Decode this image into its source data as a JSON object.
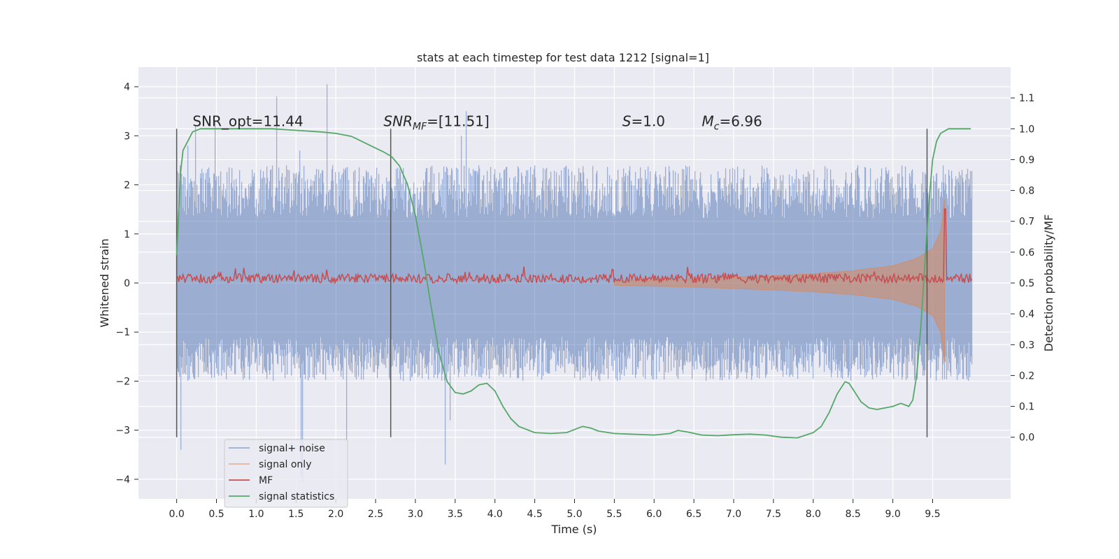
{
  "chart_data": {
    "type": "line",
    "title": "stats at each timestep for test data 1212 [signal=1]",
    "xlabel": "Time (s)",
    "ylabel_left": "Whitened strain",
    "ylabel_right": "Detection probability/MF",
    "xlim": [
      -0.48,
      10.48
    ],
    "ylim_left": [
      -4.4,
      4.4
    ],
    "ylim_right": [
      -0.2,
      1.2
    ],
    "xticks": [
      "0.0",
      "0.5",
      "1.0",
      "1.5",
      "2.0",
      "2.5",
      "3.0",
      "3.5",
      "4.0",
      "4.5",
      "5.0",
      "5.5",
      "6.0",
      "6.5",
      "7.0",
      "7.5",
      "8.0",
      "8.5",
      "9.0",
      "9.5"
    ],
    "yticks_left": [
      "4",
      "3",
      "2",
      "1",
      "0",
      "−1",
      "−2",
      "−3",
      "−4"
    ],
    "yticks_right": [
      "1.1",
      "1.0",
      "0.9",
      "0.8",
      "0.7",
      "0.6",
      "0.5",
      "0.4",
      "0.3",
      "0.2",
      "0.1",
      "0.0"
    ],
    "grid": true,
    "legend_position": "lower-left",
    "annotations": [
      {
        "text": "SNR_opt=11.44",
        "x": 0.2,
        "y": 3.2
      },
      {
        "text": "SNR",
        "sub": "MF",
        "rest": "=[11.51]",
        "x": 2.6,
        "y": 3.2
      },
      {
        "text": "S",
        "rest": "=1.0",
        "x": 5.6,
        "y": 3.2
      },
      {
        "text": "M",
        "sub": "c",
        "rest": "=6.96",
        "x": 6.6,
        "y": 3.2
      }
    ],
    "vlines": [
      0.0,
      2.69,
      9.43
    ],
    "series": [
      {
        "name": "signal+ noise",
        "color": "#4c72b0",
        "axis": "left",
        "x_range": [
          0.0,
          10.0
        ],
        "band": [
          -2.0,
          2.4
        ],
        "spikes_max": [
          2.7,
          2.8,
          3.0,
          3.2,
          3.3,
          3.5,
          3.8,
          4.05
        ],
        "spikes_min": [
          -2.8,
          -3.2,
          -3.4,
          -3.7,
          -3.95,
          -4.05
        ]
      },
      {
        "name": "signal only",
        "color": "#dd8452",
        "axis": "left",
        "x_range": [
          0.0,
          9.65
        ],
        "envelope": [
          [
            5.5,
            0.05
          ],
          [
            6.0,
            0.07
          ],
          [
            6.5,
            0.09
          ],
          [
            7.0,
            0.12
          ],
          [
            7.5,
            0.15
          ],
          [
            8.0,
            0.19
          ],
          [
            8.5,
            0.25
          ],
          [
            9.0,
            0.35
          ],
          [
            9.3,
            0.5
          ],
          [
            9.5,
            0.7
          ],
          [
            9.6,
            1.05
          ],
          [
            9.65,
            1.7
          ]
        ]
      },
      {
        "name": "MF",
        "color": "#c44e52",
        "axis": "right",
        "x_range": [
          0.0,
          10.0
        ],
        "level": [
          0.5,
          0.53
        ],
        "peak": {
          "x": 9.66,
          "y": 0.74
        }
      },
      {
        "name": "signal statistics",
        "color": "#55a868",
        "axis": "right",
        "x": [
          0.0,
          0.02,
          0.05,
          0.08,
          0.12,
          0.2,
          0.3,
          0.4,
          0.6,
          0.8,
          1.0,
          1.2,
          1.5,
          1.8,
          2.0,
          2.2,
          2.4,
          2.6,
          2.7,
          2.8,
          2.9,
          3.0,
          3.1,
          3.2,
          3.3,
          3.4,
          3.5,
          3.6,
          3.7,
          3.8,
          3.9,
          4.0,
          4.1,
          4.2,
          4.3,
          4.5,
          4.7,
          4.9,
          5.0,
          5.1,
          5.2,
          5.3,
          5.5,
          5.7,
          6.0,
          6.2,
          6.3,
          6.4,
          6.6,
          6.8,
          7.0,
          7.2,
          7.4,
          7.6,
          7.8,
          8.0,
          8.1,
          8.2,
          8.3,
          8.4,
          8.45,
          8.5,
          8.6,
          8.7,
          8.8,
          9.0,
          9.1,
          9.15,
          9.2,
          9.25,
          9.3,
          9.35,
          9.4,
          9.45,
          9.5,
          9.55,
          9.6,
          9.7,
          9.8,
          9.9,
          9.98
        ],
        "y": [
          0.59,
          0.7,
          0.86,
          0.93,
          0.95,
          0.99,
          1.0,
          1.0,
          1.0,
          1.0,
          1.0,
          1.0,
          0.995,
          0.99,
          0.985,
          0.975,
          0.95,
          0.925,
          0.91,
          0.88,
          0.82,
          0.72,
          0.58,
          0.42,
          0.27,
          0.18,
          0.145,
          0.14,
          0.15,
          0.17,
          0.175,
          0.15,
          0.1,
          0.06,
          0.035,
          0.015,
          0.012,
          0.015,
          0.025,
          0.035,
          0.03,
          0.02,
          0.012,
          0.01,
          0.007,
          0.012,
          0.022,
          0.018,
          0.007,
          0.005,
          0.008,
          0.01,
          0.007,
          0.0,
          -0.002,
          0.015,
          0.035,
          0.08,
          0.14,
          0.18,
          0.175,
          0.155,
          0.115,
          0.095,
          0.09,
          0.1,
          0.11,
          0.105,
          0.1,
          0.12,
          0.2,
          0.35,
          0.55,
          0.75,
          0.9,
          0.96,
          0.985,
          1.0,
          1.0,
          1.0,
          1.0
        ]
      }
    ]
  }
}
